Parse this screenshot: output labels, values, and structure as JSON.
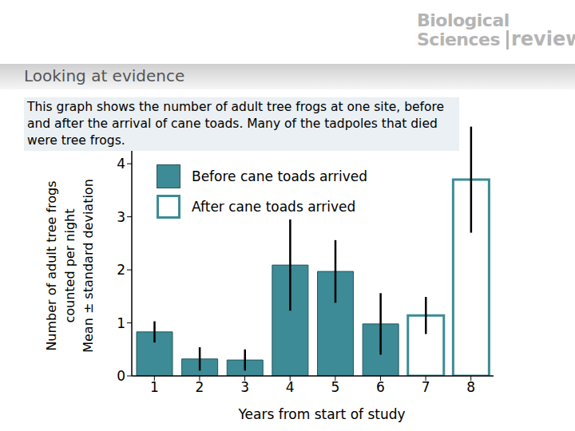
{
  "chart_data": {
    "type": "bar",
    "title": "Looking at evidence",
    "subtitle": "This graph shows the number of adult tree frogs at one site, before and after the arrival of cane toads. Many of the tadpoles that died were tree frogs.",
    "annotations": [
      "Biological",
      "Sciences",
      "review"
    ],
    "x_label": "Years from start of study",
    "y_label": [
      "Number of adult tree frogs",
      "counted per night",
      "Mean ± standard deviation"
    ],
    "categories": [
      "1",
      "2",
      "3",
      "4",
      "5",
      "6",
      "7",
      "8"
    ],
    "series": [
      {
        "name": "Before cane toads arrived",
        "color": "#3d8b96",
        "values": [
          0.83,
          0.32,
          0.3,
          2.09,
          1.97,
          0.98,
          null,
          null
        ],
        "errors": [
          0.2,
          0.22,
          0.2,
          0.86,
          0.59,
          0.58,
          null,
          null
        ]
      },
      {
        "name": "After cane toads arrived",
        "color": "#ffffff",
        "values": [
          null,
          null,
          null,
          null,
          null,
          null,
          1.14,
          3.7
        ],
        "errors": [
          null,
          null,
          null,
          null,
          null,
          null,
          0.35,
          1.0
        ]
      }
    ],
    "ylim": [
      0,
      4.8
    ],
    "yticks": [
      0,
      1,
      2,
      3,
      4
    ],
    "grid": false
  }
}
